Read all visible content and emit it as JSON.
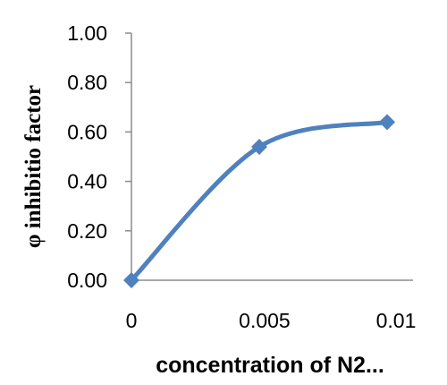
{
  "chart_data": {
    "type": "line",
    "title": "",
    "xlabel": "concentration of N2...",
    "ylabel": "φ inhibitio factor",
    "x": [
      0,
      0.0048,
      0.0096
    ],
    "series": [
      {
        "name": "",
        "values": [
          0.0,
          0.54,
          0.64
        ],
        "color": "#4f81bd",
        "marker": "diamond",
        "smooth": true
      }
    ],
    "x_ticks": [
      "0",
      "0.005",
      "0.01"
    ],
    "y_ticks": [
      "0.00",
      "0.20",
      "0.40",
      "0.60",
      "0.80",
      "1.00"
    ],
    "xlim": [
      0,
      0.0096
    ],
    "ylim": [
      0,
      1.0
    ],
    "grid": false,
    "legend": "none"
  }
}
